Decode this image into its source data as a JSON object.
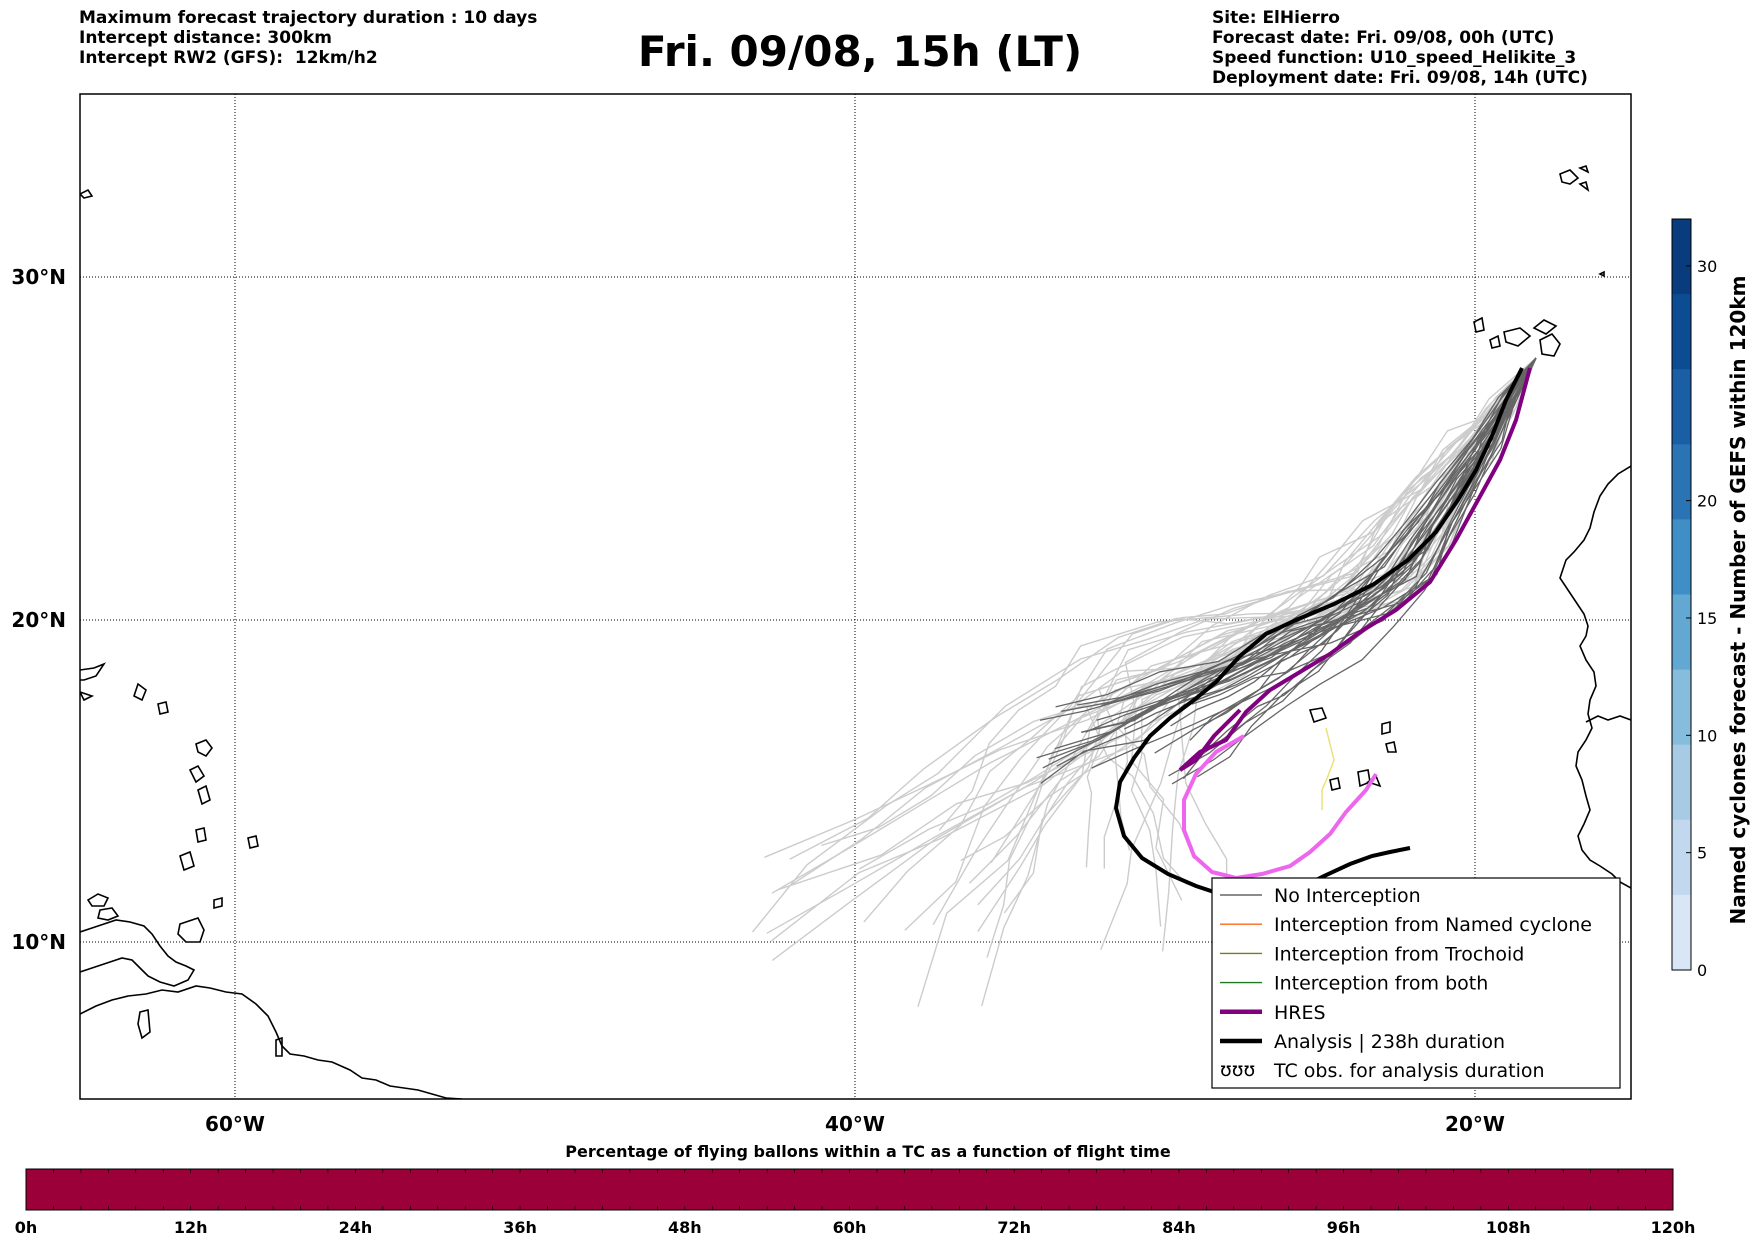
{
  "header": {
    "left": [
      "Maximum forecast trajectory duration : 10 days",
      "Intercept distance: 300km",
      "Intercept RW2 (GFS):  12km/h2"
    ],
    "title": "Fri. 09/08, 15h (LT)",
    "right": [
      "Site: ElHierro",
      "Forecast date: Fri. 09/08, 00h (UTC)",
      "Speed function: U10_speed_Helikite_3",
      "Deployment date: Fri. 09/08, 14h (UTC)"
    ]
  },
  "map": {
    "lon_range": [
      -65,
      15
    ],
    "lat_range": [
      5,
      34
    ],
    "lat_ticks": [
      {
        "value": 30,
        "label": "30°N"
      },
      {
        "value": 20,
        "label": "20°N"
      },
      {
        "value": 10,
        "label": "10°N"
      }
    ],
    "lon_ticks": [
      {
        "value": -60,
        "label": "60°W"
      },
      {
        "value": -40,
        "label": "40°W"
      },
      {
        "value": -20,
        "label": "20°W"
      }
    ],
    "colors": {
      "no_interception_dark": "#666666",
      "no_interception_light": "#cccccc",
      "named_cyclone": "#ff6a1a",
      "trochoid": "#7a7a1a",
      "both": "#1f7a1f",
      "hres": "#800080",
      "analysis": "#000000",
      "hres_pink": "#ee66ee",
      "yellow_track": "#e8e070"
    }
  },
  "legend": {
    "items": [
      {
        "label": "No Interception",
        "color": "#666666",
        "width": 1
      },
      {
        "label": "Interception from Named cyclone",
        "color": "#ff6a1a",
        "width": 1
      },
      {
        "label": "Interception from Trochoid",
        "color": "#7a7a1a",
        "width": 1
      },
      {
        "label": "Interception from both",
        "color": "#1f7a1f",
        "width": 1
      },
      {
        "label": "HRES",
        "color": "#800080",
        "width": 4
      },
      {
        "label": "Analysis | 238h duration",
        "color": "#000000",
        "width": 4
      },
      {
        "label": "TC obs. for analysis duration",
        "color": "#000000",
        "width": 0,
        "symbol": "ʊʊʊ"
      }
    ]
  },
  "colorbar": {
    "label": "Named cyclones forecast - Number of GEFS within 120km",
    "ticks": [
      0,
      5,
      10,
      15,
      20,
      30
    ],
    "range": [
      0,
      32
    ],
    "colors": [
      "#d8e6f5",
      "#c2d8ee",
      "#a7cbe5",
      "#86bddc",
      "#62a8d3",
      "#3f8fc6",
      "#2a74b6",
      "#1a5ea6",
      "#0c4c93",
      "#083c7d"
    ]
  },
  "bottom_bar": {
    "title": "Percentage of flying ballons within a TC as a function of flight time",
    "color": "#9b0039",
    "ticks": [
      "0h",
      "12h",
      "24h",
      "36h",
      "48h",
      "60h",
      "72h",
      "84h",
      "96h",
      "108h",
      "120h"
    ]
  }
}
